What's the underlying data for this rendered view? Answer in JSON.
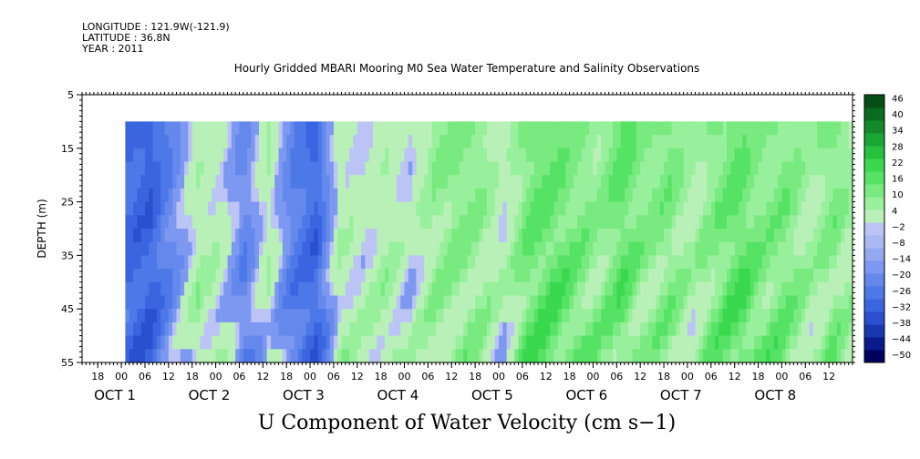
{
  "header": {
    "longitude": "LONGITUDE : 121.9W(-121.9)",
    "latitude": "LATITUDE : 36.8N",
    "year": "YEAR : 2011"
  },
  "title": "Hourly Gridded MBARI Mooring M0 Sea Water Temperature and Salinity Observations",
  "caption": "U Component of Water Velocity (cm s−1)",
  "chart_data": {
    "type": "heatmap",
    "title": "Hourly Gridded MBARI Mooring M0 Sea Water Temperature and Salinity Observations",
    "xlabel": "",
    "ylabel": "DEPTH (m)",
    "ylim": [
      55,
      5
    ],
    "y_ticks": [
      "5",
      "15",
      "25",
      "35",
      "45",
      "55"
    ],
    "x_range_hours": [
      "Sep 30 14:00",
      "Oct 8 18:00"
    ],
    "x_hour_ticks": [
      "18",
      "00",
      "06",
      "12",
      "18",
      "00",
      "06",
      "12",
      "18",
      "00",
      "06",
      "12",
      "18",
      "00",
      "06",
      "12",
      "18",
      "00",
      "06",
      "12",
      "18",
      "00",
      "06",
      "12",
      "18",
      "00",
      "06",
      "12",
      "18",
      "00",
      "06",
      "12"
    ],
    "x_day_labels": [
      "OCT 1",
      "OCT 2",
      "OCT 3",
      "OCT 4",
      "OCT 5",
      "OCT 6",
      "OCT 7",
      "OCT 8"
    ],
    "data_depth_range": [
      10,
      55
    ],
    "data_time_start": "Oct 1 01:00",
    "colorbar": {
      "levels": [
        -50,
        -44,
        -38,
        -32,
        -26,
        -20,
        -14,
        -8,
        -2,
        4,
        10,
        16,
        22,
        28,
        34,
        40,
        46
      ],
      "colors": [
        "#00005f",
        "#0a1a8a",
        "#1838b0",
        "#2a50d0",
        "#3a64e0",
        "#4c78e8",
        "#6488ec",
        "#7c98f0",
        "#94a8f2",
        "#aab8f4",
        "#bcc4f6",
        "#b8f0b8",
        "#98f09c",
        "#78ea80",
        "#56e264",
        "#3ad84e",
        "#26c23e",
        "#1aa634",
        "#128a2a",
        "#0a6c20",
        "#064e16"
      ]
    },
    "time_profile": [
      {
        "t": 0,
        "u": -20
      },
      {
        "t": 6,
        "u": -24
      },
      {
        "t": 12,
        "u": -10
      },
      {
        "t": 18,
        "u": 6
      },
      {
        "t": 24,
        "u": 3
      },
      {
        "t": 30,
        "u": -10
      },
      {
        "t": 36,
        "u": 8
      },
      {
        "t": 42,
        "u": -12
      },
      {
        "t": 48,
        "u": -22
      },
      {
        "t": 54,
        "u": 5
      },
      {
        "t": 60,
        "u": 1
      },
      {
        "t": 66,
        "u": 6
      },
      {
        "t": 72,
        "u": 1
      },
      {
        "t": 78,
        "u": 12
      },
      {
        "t": 84,
        "u": 15
      },
      {
        "t": 90,
        "u": 13
      },
      {
        "t": 96,
        "u": 4
      },
      {
        "t": 102,
        "u": 16
      },
      {
        "t": 108,
        "u": 17
      },
      {
        "t": 114,
        "u": 14
      },
      {
        "t": 120,
        "u": 11
      },
      {
        "t": 126,
        "u": 20
      },
      {
        "t": 132,
        "u": 14
      },
      {
        "t": 138,
        "u": 16
      },
      {
        "t": 144,
        "u": 8
      },
      {
        "t": 150,
        "u": 14
      },
      {
        "t": 156,
        "u": 18
      },
      {
        "t": 162,
        "u": 12
      },
      {
        "t": 168,
        "u": 15
      },
      {
        "t": 174,
        "u": 9
      },
      {
        "t": 180,
        "u": 16
      },
      {
        "t": 186,
        "u": 8
      },
      {
        "t": 190,
        "u": 2
      }
    ]
  }
}
